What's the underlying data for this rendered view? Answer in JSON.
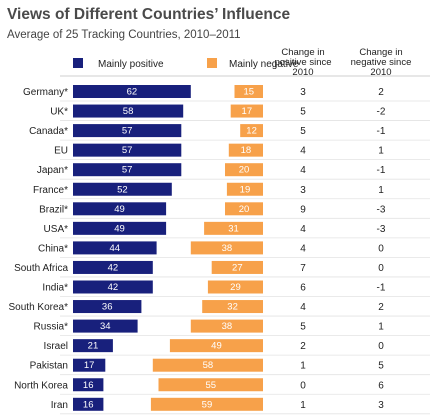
{
  "title": "Views of Different Countries’ Influence",
  "subtitle": "Average of 25 Tracking Countries, 2010–2011",
  "legend": {
    "positive": "Mainly positive",
    "negative": "Mainly negative"
  },
  "columns": {
    "pos_change": [
      "Change in",
      "positive since",
      "2010"
    ],
    "neg_change": [
      "Change in",
      "negative since",
      "2010"
    ]
  },
  "colors": {
    "positive": "#18207c",
    "negative": "#f7a14a"
  },
  "chart_data": {
    "type": "bar",
    "orientation": "horizontal-diverging",
    "categories": [
      "Germany*",
      "UK*",
      "Canada*",
      "EU",
      "Japan*",
      "France*",
      "Brazil*",
      "USA*",
      "China*",
      "South Africa",
      "India*",
      "South Korea*",
      "Russia*",
      "Israel",
      "Pakistan",
      "North Korea",
      "Iran"
    ],
    "series": [
      {
        "name": "Mainly positive",
        "values": [
          62,
          58,
          57,
          57,
          57,
          52,
          49,
          49,
          44,
          42,
          42,
          36,
          34,
          21,
          17,
          16,
          16
        ]
      },
      {
        "name": "Mainly negative",
        "values": [
          15,
          17,
          12,
          18,
          20,
          19,
          20,
          31,
          38,
          27,
          29,
          32,
          38,
          49,
          58,
          55,
          59
        ]
      }
    ],
    "pos_change": [
      "3",
      "5",
      "5",
      "4",
      "4",
      "3",
      "9",
      "4",
      "4",
      "7",
      "6",
      "4",
      "5",
      "2",
      "1",
      "0",
      "1"
    ],
    "neg_change": [
      "2",
      "-2",
      "-1",
      "1",
      "-1",
      "1",
      "-3",
      "-3",
      "0",
      "0",
      "-1",
      "2",
      "1",
      "0",
      "5",
      "6",
      "3"
    ],
    "legend_position": "top",
    "grid": false
  }
}
